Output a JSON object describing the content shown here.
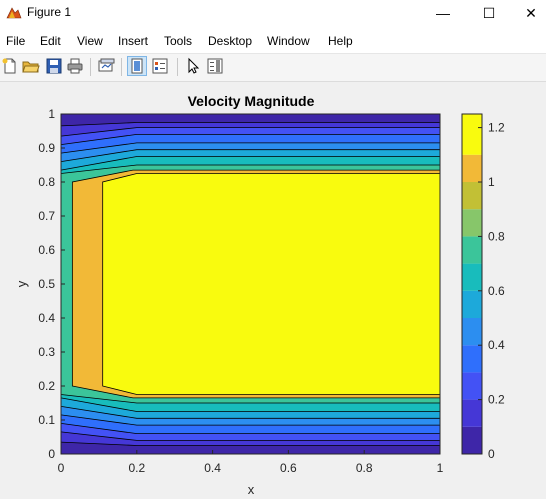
{
  "window": {
    "title": "Figure 1",
    "controls": {
      "minimize": "—",
      "maximize": "☐",
      "close": "✕"
    }
  },
  "menu": {
    "items": [
      "File",
      "Edit",
      "View",
      "Insert",
      "Tools",
      "Desktop",
      "Window",
      "Help"
    ]
  },
  "toolbar": {
    "buttons": [
      "new-figure-icon",
      "open-file-icon",
      "save-icon",
      "print-icon",
      "link-plot-icon",
      "hide-plot-tools-icon",
      "show-plot-tools-icon",
      "edit-plot-arrow-icon",
      "insert-colorbar-icon"
    ]
  },
  "chart_data": {
    "type": "contourf",
    "title": "Velocity Magnitude",
    "xlabel": "x",
    "ylabel": "y",
    "xlim": [
      0,
      1
    ],
    "ylim": [
      0,
      1
    ],
    "xticks": [
      "0",
      "0.2",
      "0.4",
      "0.6",
      "0.8",
      "1"
    ],
    "yticks": [
      "0",
      "0.1",
      "0.2",
      "0.3",
      "0.4",
      "0.5",
      "0.6",
      "0.7",
      "0.8",
      "0.9",
      "1"
    ],
    "colorbar": {
      "ticks": [
        "0",
        "0.2",
        "0.4",
        "0.6",
        "0.8",
        "1",
        "1.2"
      ],
      "range": [
        0,
        1.25
      ]
    },
    "levels": [
      0,
      0.1,
      0.2,
      0.3,
      0.4,
      0.5,
      0.6,
      0.7,
      0.8,
      0.9,
      1.0,
      1.1,
      1.25
    ],
    "level_colors": [
      "#3e26a8",
      "#4537d6",
      "#4352f5",
      "#2f6ffc",
      "#2c8ef0",
      "#1da9da",
      "#18bcbc",
      "#3bc59a",
      "#87c66a",
      "#c2c035",
      "#f2b937",
      "#f9fb0e"
    ],
    "contour_bands": [
      {
        "level": 0.1,
        "lower_y": [
          0.035,
          0.025
        ],
        "upper_y": [
          0.965,
          0.975
        ]
      },
      {
        "level": 0.2,
        "lower_y": [
          0.065,
          0.04
        ],
        "upper_y": [
          0.935,
          0.96
        ]
      },
      {
        "level": 0.3,
        "lower_y": [
          0.09,
          0.06
        ],
        "upper_y": [
          0.91,
          0.94
        ]
      },
      {
        "level": 0.5,
        "lower_y": [
          0.115,
          0.085
        ],
        "upper_y": [
          0.885,
          0.915
        ]
      },
      {
        "level": 0.6,
        "lower_y": [
          0.14,
          0.105
        ],
        "upper_y": [
          0.86,
          0.895
        ]
      },
      {
        "level": 0.8,
        "lower_y": [
          0.165,
          0.125
        ],
        "upper_y": [
          0.835,
          0.875
        ]
      },
      {
        "level": 0.9,
        "lower_y": [
          0.175,
          0.15
        ],
        "upper_y": [
          0.825,
          0.85
        ]
      }
    ],
    "inner_contours": [
      {
        "level": 1.0,
        "points": [
          [
            0.03,
            0.2
          ],
          [
            0.19,
            0.165
          ],
          [
            1,
            0.165
          ],
          [
            1,
            0.835
          ],
          [
            0.19,
            0.835
          ],
          [
            0.03,
            0.8
          ]
        ]
      },
      {
        "level": 1.1,
        "points": [
          [
            0.11,
            0.2
          ],
          [
            0.2,
            0.175
          ],
          [
            1,
            0.175
          ],
          [
            1,
            0.825
          ],
          [
            0.2,
            0.825
          ],
          [
            0.11,
            0.8
          ]
        ]
      }
    ]
  }
}
